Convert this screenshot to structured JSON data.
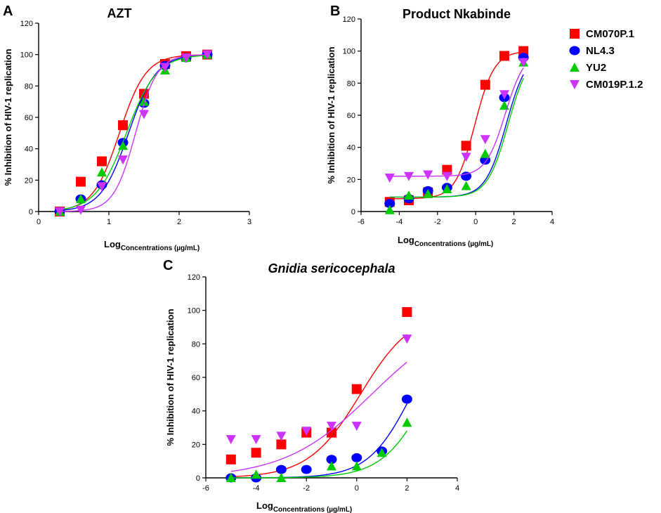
{
  "legend": {
    "items": [
      {
        "label": "CM070P.1",
        "marker": "square",
        "color": "#ff0000"
      },
      {
        "label": "NL4.3",
        "marker": "circle",
        "color": "#0000ff"
      },
      {
        "label": "YU2",
        "marker": "triangle-up",
        "color": "#00cc00"
      },
      {
        "label": "CM019P.1.2",
        "marker": "triangle-down",
        "color": "#cc33ff"
      }
    ]
  },
  "chart_data": [
    {
      "panel": "A",
      "type": "scatter",
      "title": "AZT",
      "title_italic": false,
      "xlabel_main": "Log",
      "xlabel_sub": "Concentrations (µg/mL)",
      "ylabel": "% Inhibition of HIV-1 replication",
      "xlim": [
        0,
        3
      ],
      "ylim": [
        0,
        120
      ],
      "xticks": [
        0,
        1,
        2,
        3
      ],
      "yticks": [
        0,
        20,
        40,
        60,
        80,
        100,
        120
      ],
      "series": [
        {
          "name": "CM070P.1",
          "x": [
            0.3,
            0.6,
            0.9,
            1.2,
            1.5,
            1.8,
            2.1,
            2.4
          ],
          "y": [
            0,
            19,
            32,
            55,
            75,
            94,
            99,
            100
          ],
          "curve": {
            "kind": "sigmoid",
            "bottom": 0,
            "top": 100,
            "x50": 1.15,
            "hill": 2.3
          }
        },
        {
          "name": "NL4.3",
          "x": [
            0.3,
            0.6,
            0.9,
            1.2,
            1.5,
            1.8,
            2.1,
            2.4
          ],
          "y": [
            0,
            8,
            17,
            44,
            69,
            93,
            98,
            100
          ],
          "curve": {
            "kind": "sigmoid",
            "bottom": 0,
            "top": 100,
            "x50": 1.28,
            "hill": 2.2
          }
        },
        {
          "name": "YU2",
          "x": [
            0.3,
            0.6,
            0.9,
            1.2,
            1.5,
            1.8,
            2.1,
            2.4
          ],
          "y": [
            0,
            8,
            25,
            42,
            70,
            90,
            98,
            100
          ],
          "curve": {
            "kind": "sigmoid",
            "bottom": 0,
            "top": 100,
            "x50": 1.25,
            "hill": 2.0
          }
        },
        {
          "name": "CM019P.1.2",
          "x": [
            0.3,
            0.6,
            0.9,
            1.2,
            1.5,
            1.8,
            2.1,
            2.4
          ],
          "y": [
            0,
            1,
            16,
            33,
            62,
            92,
            98,
            100
          ],
          "curve": {
            "kind": "sigmoid",
            "bottom": 0,
            "top": 100,
            "x50": 1.38,
            "hill": 2.8
          }
        }
      ]
    },
    {
      "panel": "B",
      "type": "scatter",
      "title": "Product Nkabinde",
      "title_italic": false,
      "xlabel_main": "Log",
      "xlabel_sub": "Concentrations (µg/mL)",
      "ylabel": "% Inhibition of HIV-1 replication",
      "xlim": [
        -6,
        4
      ],
      "ylim": [
        0,
        120
      ],
      "xticks": [
        -6,
        -4,
        -2,
        0,
        2,
        4
      ],
      "yticks": [
        0,
        20,
        40,
        60,
        80,
        100,
        120
      ],
      "series": [
        {
          "name": "CM070P.1",
          "x": [
            -4.5,
            -3.5,
            -2.5,
            -1.5,
            -0.5,
            0.5,
            1.5,
            2.5
          ],
          "y": [
            6,
            7,
            12,
            26,
            41,
            79,
            97,
            100
          ],
          "curve": {
            "kind": "sigmoid",
            "bottom": 8,
            "top": 100,
            "x50": -0.05,
            "hill": 0.85
          }
        },
        {
          "name": "NL4.3",
          "x": [
            -4.5,
            -3.5,
            -2.5,
            -1.5,
            -0.5,
            0.5,
            1.5,
            2.5
          ],
          "y": [
            5,
            8,
            13,
            15,
            22,
            32,
            71,
            96
          ],
          "curve": {
            "kind": "sigmoid",
            "bottom": 9,
            "top": 100,
            "x50": 1.6,
            "hill": 0.8
          }
        },
        {
          "name": "YU2",
          "x": [
            -4.5,
            -3.5,
            -2.5,
            -1.5,
            -0.5,
            0.5,
            1.5,
            2.5
          ],
          "y": [
            1,
            10,
            11,
            14,
            16,
            36,
            66,
            93
          ],
          "curve": {
            "kind": "sigmoid",
            "bottom": 9,
            "top": 100,
            "x50": 1.7,
            "hill": 0.8
          }
        },
        {
          "name": "CM019P.1.2",
          "x": [
            -4.5,
            -3.5,
            -2.5,
            -1.5,
            -0.5,
            0.5,
            1.5,
            2.5
          ],
          "y": [
            21,
            22,
            23,
            22,
            34,
            45,
            73,
            93
          ],
          "curve": {
            "kind": "sigmoid",
            "bottom": 22,
            "top": 100,
            "x50": 1.55,
            "hill": 0.85
          }
        }
      ]
    },
    {
      "panel": "C",
      "type": "scatter",
      "title": "Gnidia sericocephala",
      "title_italic": true,
      "xlabel_main": "Log",
      "xlabel_sub": "Concentrations (µg/mL)",
      "ylabel": "% Inhibition of HIV-1 replication",
      "xlim": [
        -6,
        4
      ],
      "ylim": [
        0,
        120
      ],
      "xticks": [
        -6,
        -4,
        -2,
        0,
        2,
        4
      ],
      "yticks": [
        0,
        20,
        40,
        60,
        80,
        100,
        120
      ],
      "series": [
        {
          "name": "CM070P.1",
          "x": [
            -5,
            -4,
            -3,
            -2,
            -1,
            0,
            2
          ],
          "y": [
            11,
            15,
            20,
            27,
            27,
            53,
            99
          ],
          "curve": {
            "kind": "sigmoid",
            "bottom": 0,
            "top": 100,
            "x50": 0.15,
            "hill": 0.42
          }
        },
        {
          "name": "NL4.3",
          "x": [
            -5,
            -4,
            -3,
            -2,
            -1,
            0,
            1,
            2
          ],
          "y": [
            0,
            0,
            5,
            5,
            11,
            12,
            16,
            47
          ],
          "curve": {
            "kind": "sigmoid",
            "bottom": 0,
            "top": 100,
            "x50": 2.2,
            "hill": 0.5
          }
        },
        {
          "name": "YU2",
          "x": [
            -5,
            -4,
            -3,
            -1,
            0,
            1,
            2
          ],
          "y": [
            0,
            2,
            0,
            7,
            7,
            15,
            33
          ],
          "curve": {
            "kind": "sigmoid",
            "bottom": 0,
            "top": 100,
            "x50": 2.85,
            "hill": 0.48
          }
        },
        {
          "name": "CM019P.1.2",
          "x": [
            -5,
            -4,
            -3,
            -2,
            -1,
            0,
            2
          ],
          "y": [
            23,
            23,
            25,
            28,
            31,
            31,
            83
          ],
          "curve": {
            "kind": "sigmoid",
            "bottom": 0,
            "top": 100,
            "x50": 0.6,
            "hill": 0.25
          }
        }
      ]
    }
  ]
}
